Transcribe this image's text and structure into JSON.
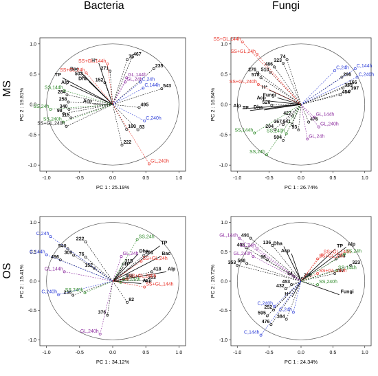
{
  "headers": {
    "col_left": "Bacteria",
    "col_right": "Fungi",
    "row_top": "MS",
    "row_bottom": "OS"
  },
  "colors": {
    "black": "#111111",
    "red": "#e8342a",
    "purple": "#8e2fa0",
    "blue": "#2f3fd8",
    "green": "#2f8a2a"
  },
  "chart_data": [
    {
      "type": "scatter",
      "panel": "MS-Bacteria",
      "xlabel": "PC 1 : 25.19%",
      "ylabel": "PC 2 : 19.81%",
      "xlim": [
        -1.1,
        1.1
      ],
      "ylim": [
        -1.1,
        1.1
      ],
      "xticks": [
        "-1.0",
        "-0.5",
        "0.0",
        "0.5",
        "1.0"
      ],
      "yticks": [
        "1.0",
        "0.5",
        "0.0",
        "-0.5",
        "-1.0"
      ],
      "grid": false,
      "vectors": [
        {
          "label": "TP",
          "x": -0.76,
          "y": 0.44,
          "group": "black"
        },
        {
          "label": "Alp",
          "x": -0.64,
          "y": 0.32,
          "group": "black"
        },
        {
          "label": "Bac",
          "x": -0.49,
          "y": 0.54,
          "group": "black"
        },
        {
          "label": "Dha",
          "x": -0.36,
          "y": 0.38,
          "group": "black"
        },
        {
          "label": "H⁺",
          "x": -0.21,
          "y": 0.68,
          "group": "black"
        },
        {
          "label": "Acp",
          "x": -0.29,
          "y": 0.01,
          "group": "black"
        }
      ],
      "points": [
        {
          "label": "75",
          "x": 0.22,
          "y": 0.74,
          "group": "black"
        },
        {
          "label": "467",
          "x": 0.29,
          "y": 0.78,
          "group": "black"
        },
        {
          "label": "235",
          "x": 0.62,
          "y": 0.59,
          "group": "black"
        },
        {
          "label": "271",
          "x": -0.04,
          "y": 0.55,
          "group": "black"
        },
        {
          "label": "503",
          "x": -0.43,
          "y": 0.46,
          "group": "black"
        },
        {
          "label": "152",
          "x": -0.12,
          "y": 0.36,
          "group": "black"
        },
        {
          "label": "543",
          "x": 0.74,
          "y": 0.26,
          "group": "black"
        },
        {
          "label": "284",
          "x": -0.69,
          "y": 0.16,
          "group": "black"
        },
        {
          "label": "258",
          "x": -0.67,
          "y": 0.04,
          "group": "black"
        },
        {
          "label": "340",
          "x": -0.66,
          "y": -0.08,
          "group": "black"
        },
        {
          "label": "98",
          "x": -0.74,
          "y": -0.15,
          "group": "black"
        },
        {
          "label": "115",
          "x": -0.63,
          "y": -0.22,
          "group": "black"
        },
        {
          "label": "495",
          "x": 0.4,
          "y": -0.05,
          "group": "black"
        },
        {
          "label": "160",
          "x": 0.21,
          "y": -0.41,
          "group": "black"
        },
        {
          "label": "83",
          "x": 0.38,
          "y": -0.42,
          "group": "black"
        },
        {
          "label": "222",
          "x": 0.14,
          "y": -0.67,
          "group": "black"
        },
        {
          "label": "SS+GL,24h",
          "x": -0.4,
          "y": 0.52,
          "group": "red"
        },
        {
          "label": "SS+GL,144h",
          "x": -0.08,
          "y": 0.67,
          "group": "red"
        },
        {
          "label": "GL,240h",
          "x": 0.55,
          "y": -0.98,
          "group": "red"
        },
        {
          "label": "GL,144h",
          "x": 0.21,
          "y": 0.44,
          "group": "purple"
        },
        {
          "label": "GL,24h",
          "x": 0.19,
          "y": 0.37,
          "group": "purple"
        },
        {
          "label": "C,24h",
          "x": 0.42,
          "y": 0.37,
          "group": "blue"
        },
        {
          "label": "C,144h",
          "x": 0.46,
          "y": 0.27,
          "group": "blue"
        },
        {
          "label": "C,240h",
          "x": 0.48,
          "y": -0.27,
          "group": "blue"
        },
        {
          "label": "SS,144h",
          "x": -0.73,
          "y": 0.23,
          "group": "green"
        },
        {
          "label": "SS,24h",
          "x": -0.94,
          "y": -0.08,
          "group": "green"
        },
        {
          "label": "SS,240h",
          "x": -0.75,
          "y": -0.29,
          "group": "green"
        },
        {
          "label": "SS+GL,240h",
          "x": -0.7,
          "y": -0.36,
          "group": "black"
        }
      ]
    },
    {
      "type": "scatter",
      "panel": "MS-Fungi",
      "xlabel": "PC 1 : 26.74%",
      "ylabel": "PC 2 : 16.84%",
      "xlim": [
        -1.1,
        1.1
      ],
      "ylim": [
        -1.1,
        1.1
      ],
      "xticks": [
        "-1.0",
        "-0.5",
        "0.0",
        "0.5",
        "1.0"
      ],
      "yticks": [
        "1.0",
        "0.5",
        "0.0",
        "-0.5",
        "-1.0"
      ],
      "grid": false,
      "vectors": [
        {
          "label": "Fungi",
          "x": -0.37,
          "y": 0.11,
          "group": "black"
        },
        {
          "label": "Acp",
          "x": -0.53,
          "y": 0.06,
          "group": "black"
        },
        {
          "label": "Alp",
          "x": -0.92,
          "y": -0.07,
          "group": "black"
        },
        {
          "label": "TP",
          "x": -0.8,
          "y": -0.1,
          "group": "black"
        },
        {
          "label": "Dha",
          "x": -0.58,
          "y": -0.09,
          "group": "black"
        },
        {
          "label": "H⁺",
          "x": -0.5,
          "y": 0.24,
          "group": "black"
        }
      ],
      "points": [
        {
          "label": "74",
          "x": -0.22,
          "y": 0.74,
          "group": "black"
        },
        {
          "label": "323",
          "x": -0.28,
          "y": 0.68,
          "group": "black"
        },
        {
          "label": "486",
          "x": -0.42,
          "y": 0.62,
          "group": "black"
        },
        {
          "label": "276",
          "x": -0.68,
          "y": 0.53,
          "group": "black"
        },
        {
          "label": "510",
          "x": -0.48,
          "y": 0.53,
          "group": "black"
        },
        {
          "label": "578",
          "x": -0.63,
          "y": 0.44,
          "group": "black"
        },
        {
          "label": "296",
          "x": 0.64,
          "y": 0.45,
          "group": "black"
        },
        {
          "label": "166",
          "x": 0.73,
          "y": 0.32,
          "group": "black"
        },
        {
          "label": "339",
          "x": 0.66,
          "y": 0.27,
          "group": "black"
        },
        {
          "label": "397",
          "x": 0.76,
          "y": 0.22,
          "group": "black"
        },
        {
          "label": "454",
          "x": 0.62,
          "y": 0.16,
          "group": "black"
        },
        {
          "label": "526",
          "x": -0.46,
          "y": -0.01,
          "group": "black"
        },
        {
          "label": "427",
          "x": -0.13,
          "y": -0.19,
          "group": "black"
        },
        {
          "label": "476",
          "x": 0.12,
          "y": -0.29,
          "group": "black"
        },
        {
          "label": "367",
          "x": -0.28,
          "y": -0.33,
          "group": "black"
        },
        {
          "label": "541",
          "x": -0.14,
          "y": -0.33,
          "group": "black"
        },
        {
          "label": "204",
          "x": -0.41,
          "y": -0.41,
          "group": "black"
        },
        {
          "label": "93",
          "x": -0.04,
          "y": -0.42,
          "group": "black"
        },
        {
          "label": "504",
          "x": -0.28,
          "y": -0.59,
          "group": "black"
        },
        {
          "label": "SS+GL,144h",
          "x": -0.92,
          "y": 1.03,
          "group": "red"
        },
        {
          "label": "SS+GL,24h",
          "x": -0.69,
          "y": 0.83,
          "group": "red"
        },
        {
          "label": "SS+GL,240h",
          "x": -0.67,
          "y": 0.33,
          "group": "red"
        },
        {
          "label": "C,24h",
          "x": 0.53,
          "y": 0.56,
          "group": "blue"
        },
        {
          "label": "C,144h",
          "x": 0.85,
          "y": 0.59,
          "group": "blue"
        },
        {
          "label": "C,240h",
          "x": 0.88,
          "y": 0.45,
          "group": "blue"
        },
        {
          "label": "GL,144h",
          "x": 0.21,
          "y": -0.21,
          "group": "purple"
        },
        {
          "label": "GL,240h",
          "x": 0.28,
          "y": -0.37,
          "group": "purple"
        },
        {
          "label": "GL,24h",
          "x": 0.1,
          "y": -0.57,
          "group": "purple"
        },
        {
          "label": "SS,144h",
          "x": -0.73,
          "y": -0.47,
          "group": "green"
        },
        {
          "label": "SS,240h",
          "x": -0.23,
          "y": -0.48,
          "group": "green"
        },
        {
          "label": "SS,24h",
          "x": -0.54,
          "y": -0.83,
          "group": "green"
        }
      ]
    },
    {
      "type": "scatter",
      "panel": "OS-Bacteria",
      "xlabel": "PC 1 : 34.12%",
      "ylabel": "PC 2 : 15.41%",
      "xlim": [
        -1.1,
        1.1
      ],
      "ylim": [
        -1.1,
        1.1
      ],
      "xticks": [
        "-1.0",
        "-0.5",
        "0.0",
        "0.5",
        "1.0"
      ],
      "yticks": [
        "1.0",
        "0.5",
        "0.0",
        "-0.5",
        "-1.0"
      ],
      "grid": false,
      "vectors": [
        {
          "label": "TP",
          "x": 0.71,
          "y": 0.6,
          "group": "black"
        },
        {
          "label": "Dha",
          "x": 0.38,
          "y": 0.46,
          "group": "black"
        },
        {
          "label": "Bac",
          "x": 0.72,
          "y": 0.42,
          "group": "black"
        },
        {
          "label": "Alp",
          "x": 0.81,
          "y": 0.16,
          "group": "black"
        },
        {
          "label": "H⁺",
          "x": 0.16,
          "y": 0.24,
          "group": "black"
        },
        {
          "label": "Acp",
          "x": 0.43,
          "y": -0.04,
          "group": "black"
        }
      ],
      "points": [
        {
          "label": "222",
          "x": -0.41,
          "y": 0.67,
          "group": "black"
        },
        {
          "label": "540",
          "x": -0.68,
          "y": 0.55,
          "group": "black"
        },
        {
          "label": "309",
          "x": -0.59,
          "y": 0.44,
          "group": "black"
        },
        {
          "label": "76",
          "x": -0.41,
          "y": 0.41,
          "group": "black"
        },
        {
          "label": "496",
          "x": -0.79,
          "y": 0.36,
          "group": "black"
        },
        {
          "label": "281",
          "x": 0.47,
          "y": 0.44,
          "group": "black"
        },
        {
          "label": "315",
          "x": 0.16,
          "y": 0.29,
          "group": "black"
        },
        {
          "label": "152",
          "x": -0.28,
          "y": 0.22,
          "group": "black"
        },
        {
          "label": "418",
          "x": 0.59,
          "y": 0.16,
          "group": "black"
        },
        {
          "label": "468",
          "x": 0.17,
          "y": 0.04,
          "group": "black"
        },
        {
          "label": "203",
          "x": 0.51,
          "y": 0.01,
          "group": "black"
        },
        {
          "label": "236",
          "x": -0.6,
          "y": -0.24,
          "group": "black"
        },
        {
          "label": "82",
          "x": 0.22,
          "y": -0.36,
          "group": "black"
        },
        {
          "label": "376",
          "x": -0.08,
          "y": -0.58,
          "group": "black"
        },
        {
          "label": "C,24h",
          "x": -0.94,
          "y": 0.76,
          "group": "blue"
        },
        {
          "label": "C,144h",
          "x": -1.0,
          "y": 0.45,
          "group": "blue"
        },
        {
          "label": "C,240h",
          "x": -0.82,
          "y": -0.23,
          "group": "blue"
        },
        {
          "label": "SS,24h",
          "x": 0.37,
          "y": 0.71,
          "group": "green"
        },
        {
          "label": "SS,144h",
          "x": 0.12,
          "y": -0.02,
          "group": "green"
        },
        {
          "label": "SS,240h",
          "x": -0.42,
          "y": -0.2,
          "group": "green"
        },
        {
          "label": "GL,24h",
          "x": 0.13,
          "y": 0.42,
          "group": "purple"
        },
        {
          "label": "GL,144h",
          "x": -0.73,
          "y": 0.16,
          "group": "purple"
        },
        {
          "label": "GL,240h",
          "x": -0.19,
          "y": -0.9,
          "group": "purple"
        },
        {
          "label": "SS+GL,24h",
          "x": 0.43,
          "y": 0.34,
          "group": "red"
        },
        {
          "label": "SS+GL,240h",
          "x": 0.22,
          "y": 0.04,
          "group": "red"
        },
        {
          "label": "SS+GL,144h",
          "x": 0.48,
          "y": -0.1,
          "group": "red"
        }
      ]
    },
    {
      "type": "scatter",
      "panel": "OS-Fungi",
      "xlabel": "PC 1 : 24.34%",
      "ylabel": "PC 2 : 20.72%",
      "xlim": [
        -1.1,
        1.1
      ],
      "ylim": [
        -1.1,
        1.1
      ],
      "xticks": [
        "-1.0",
        "-0.5",
        "0.0",
        "0.5",
        "1.0"
      ],
      "yticks": [
        "1.0",
        "0.5",
        "0.0",
        "-0.5",
        "-1.0"
      ],
      "grid": false,
      "vectors": [
        {
          "label": "Dha",
          "x": -0.27,
          "y": 0.59,
          "group": "black"
        },
        {
          "label": "Acp",
          "x": -0.15,
          "y": 0.47,
          "group": "black"
        },
        {
          "label": "TP",
          "x": 0.54,
          "y": 0.55,
          "group": "black"
        },
        {
          "label": "Alp",
          "x": 0.71,
          "y": 0.58,
          "group": "black"
        },
        {
          "label": "H⁺",
          "x": -0.14,
          "y": -0.27,
          "group": "black"
        },
        {
          "label": "Fungi",
          "x": 0.6,
          "y": -0.23,
          "group": "black"
        }
      ],
      "points": [
        {
          "label": "491",
          "x": -0.79,
          "y": 0.73,
          "group": "black"
        },
        {
          "label": "136",
          "x": -0.45,
          "y": 0.61,
          "group": "black"
        },
        {
          "label": "408",
          "x": -0.86,
          "y": 0.57,
          "group": "black"
        },
        {
          "label": "96",
          "x": -0.53,
          "y": 0.36,
          "group": "black"
        },
        {
          "label": "353",
          "x": -1.0,
          "y": 0.27,
          "group": "black"
        },
        {
          "label": "566",
          "x": -0.85,
          "y": 0.3,
          "group": "black"
        },
        {
          "label": "243",
          "x": 0.55,
          "y": 0.38,
          "group": "black"
        },
        {
          "label": "323",
          "x": 0.78,
          "y": 0.27,
          "group": "black"
        },
        {
          "label": "297",
          "x": 0.53,
          "y": 0.13,
          "group": "black"
        },
        {
          "label": "54",
          "x": -0.11,
          "y": 0.08,
          "group": "black"
        },
        {
          "label": "266",
          "x": 0.02,
          "y": 0.05,
          "group": "black"
        },
        {
          "label": "453",
          "x": -0.15,
          "y": -0.06,
          "group": "black"
        },
        {
          "label": "432",
          "x": -0.24,
          "y": -0.13,
          "group": "black"
        },
        {
          "label": "252",
          "x": -0.43,
          "y": -0.49,
          "group": "black"
        },
        {
          "label": "595",
          "x": -0.53,
          "y": -0.59,
          "group": "black"
        },
        {
          "label": "384",
          "x": -0.23,
          "y": -0.65,
          "group": "black"
        },
        {
          "label": "476",
          "x": -0.47,
          "y": -0.74,
          "group": "black"
        },
        {
          "label": "GL,144h",
          "x": -0.97,
          "y": 0.73,
          "group": "purple"
        },
        {
          "label": "GL,24h",
          "x": -0.69,
          "y": 0.56,
          "group": "purple"
        },
        {
          "label": "GL,240h",
          "x": -0.75,
          "y": 0.42,
          "group": "purple"
        },
        {
          "label": "SS+GL,144h",
          "x": 0.33,
          "y": 0.45,
          "group": "red"
        },
        {
          "label": "SS+GL,24h",
          "x": 0.26,
          "y": 0.38,
          "group": "red"
        },
        {
          "label": "SS+GL,240h",
          "x": 0.26,
          "y": 0.13,
          "group": "red"
        },
        {
          "label": "SS,24h",
          "x": 0.68,
          "y": 0.46,
          "group": "green"
        },
        {
          "label": "SS,144h",
          "x": 0.56,
          "y": 0.18,
          "group": "green"
        },
        {
          "label": "SS,240h",
          "x": 0.26,
          "y": -0.06,
          "group": "green"
        },
        {
          "label": "C,240h",
          "x": -0.42,
          "y": -0.43,
          "group": "blue"
        },
        {
          "label": "C,24h",
          "x": -0.12,
          "y": -0.53,
          "group": "blue"
        },
        {
          "label": "C,144h",
          "x": -0.63,
          "y": -0.92,
          "group": "blue"
        }
      ]
    }
  ]
}
